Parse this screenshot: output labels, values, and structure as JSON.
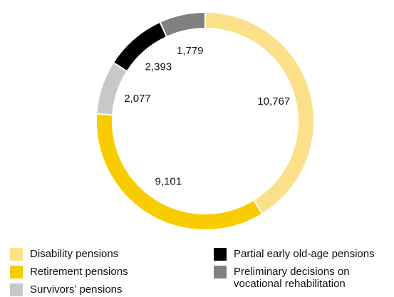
{
  "chart_data": {
    "type": "donut",
    "categories": [
      "Disability pensions",
      "Retirement pensions",
      "Survivors’ pensions",
      "Partial early old-age pensions",
      "Preliminary decisions on vocational rehabilitation"
    ],
    "values": [
      10767,
      9101,
      2077,
      2393,
      1779
    ],
    "value_labels": [
      "10,767",
      "9,101",
      "2,077",
      "2,393",
      "1,779"
    ],
    "colors": [
      "#fde08a",
      "#f9cc00",
      "#c8c8c8",
      "#000000",
      "#808080"
    ],
    "legend": "bottom"
  }
}
